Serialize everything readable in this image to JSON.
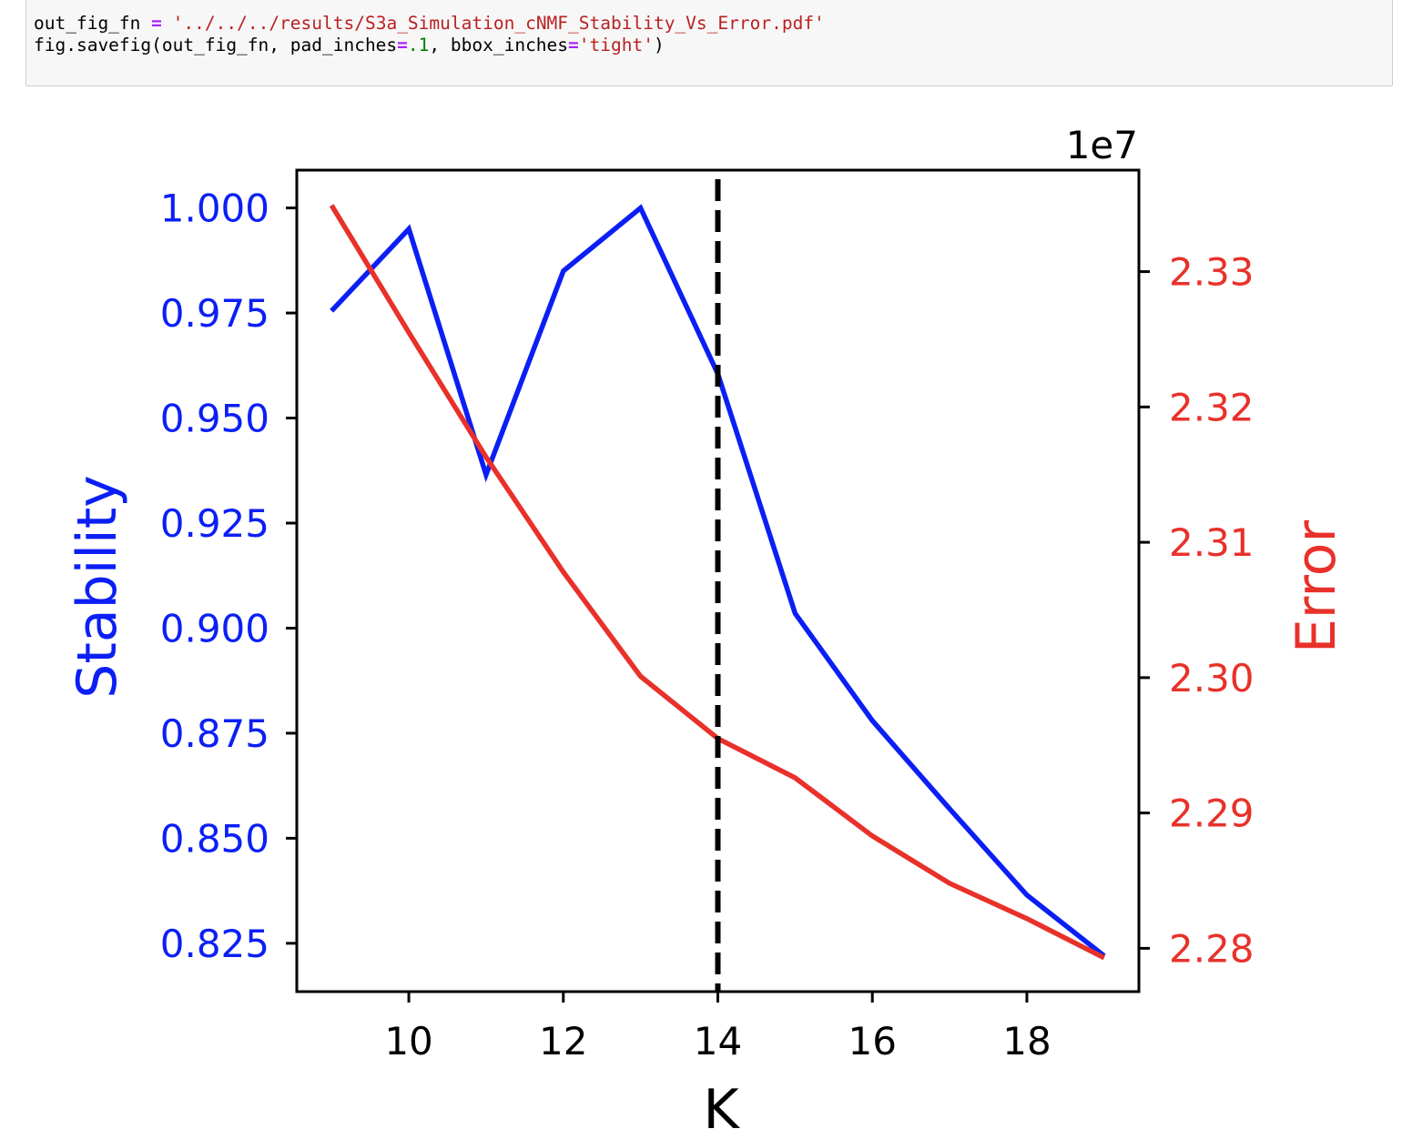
{
  "code_cell": {
    "line1": {
      "var": "out_fig_fn",
      "op": "=",
      "path": "'../../../results/S3a_Simulation_cNMF_Stability_Vs_Error.pdf'"
    },
    "line2": {
      "call": "fig.savefig(out_fig_fn, pad_inches",
      "eq1": "=",
      "pad_value": ".1",
      "mid": ", bbox_inches",
      "eq2": "=",
      "bbox_value": "'tight'",
      "close": ")"
    }
  },
  "colors": {
    "stability": "#0b1ff5",
    "error": "#e8312a",
    "k_marker": "#000000"
  },
  "chart_data": {
    "type": "line",
    "xlabel": "K",
    "ylabel_left": "Stability",
    "ylabel_right": "Error",
    "right_axis_offset": "1e7",
    "xlim": [
      8.55,
      19.45
    ],
    "ylim_left": [
      0.8135,
      1.009
    ],
    "ylim_right": [
      2.2768,
      2.3375
    ],
    "x_ticks": [
      10,
      12,
      14,
      16,
      18
    ],
    "x_tick_labels": [
      "10",
      "12",
      "14",
      "16",
      "18"
    ],
    "left_ticks": [
      0.825,
      0.85,
      0.875,
      0.9,
      0.925,
      0.95,
      0.975,
      1.0
    ],
    "left_tick_labels": [
      "0.825",
      "0.850",
      "0.875",
      "0.900",
      "0.925",
      "0.950",
      "0.975",
      "1.000"
    ],
    "right_ticks": [
      2.28,
      2.29,
      2.3,
      2.31,
      2.32,
      2.33
    ],
    "right_tick_labels": [
      "2.28",
      "2.29",
      "2.30",
      "2.31",
      "2.32",
      "2.33"
    ],
    "x": [
      9,
      10,
      11,
      12,
      13,
      14,
      15,
      16,
      17,
      18,
      19
    ],
    "series": [
      {
        "axis": "left",
        "values": [
          0.9755,
          0.995,
          0.9365,
          0.985,
          1.0,
          0.9605,
          0.9035,
          0.878,
          0.857,
          0.8365,
          0.822
        ]
      },
      {
        "axis": "right",
        "values": [
          2.3349,
          2.3255,
          2.3163,
          2.3078,
          2.3001,
          2.2955,
          2.2926,
          2.2883,
          2.2848,
          2.2822,
          2.2793
        ]
      }
    ],
    "vline_x": 14,
    "grid": false,
    "legend": "none"
  }
}
